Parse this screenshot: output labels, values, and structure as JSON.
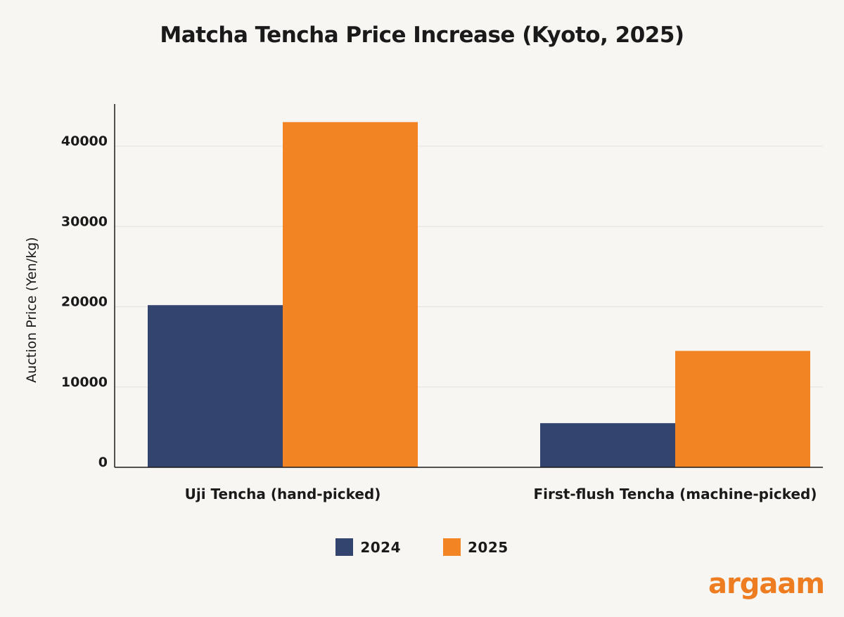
{
  "chart_data": {
    "type": "bar",
    "title": "Matcha Tencha Price Increase (Kyoto, 2025)",
    "xlabel": "",
    "ylabel": "Auction Price (Yen/kg)",
    "categories": [
      "Uji Tencha (hand-picked)",
      "First-flush Tencha (machine-picked)"
    ],
    "series": [
      {
        "name": "2024",
        "color": "#33446f",
        "values": [
          20200,
          5500
        ]
      },
      {
        "name": "2025",
        "color": "#f28423",
        "values": [
          43000,
          14500
        ]
      }
    ],
    "ylim": [
      0,
      45000
    ],
    "yticks": [
      0,
      10000,
      20000,
      30000,
      40000
    ],
    "grid": true,
    "legend_position": "bottom-center"
  },
  "brand": {
    "logo_text": "argaam",
    "color": "#ee7d22"
  }
}
